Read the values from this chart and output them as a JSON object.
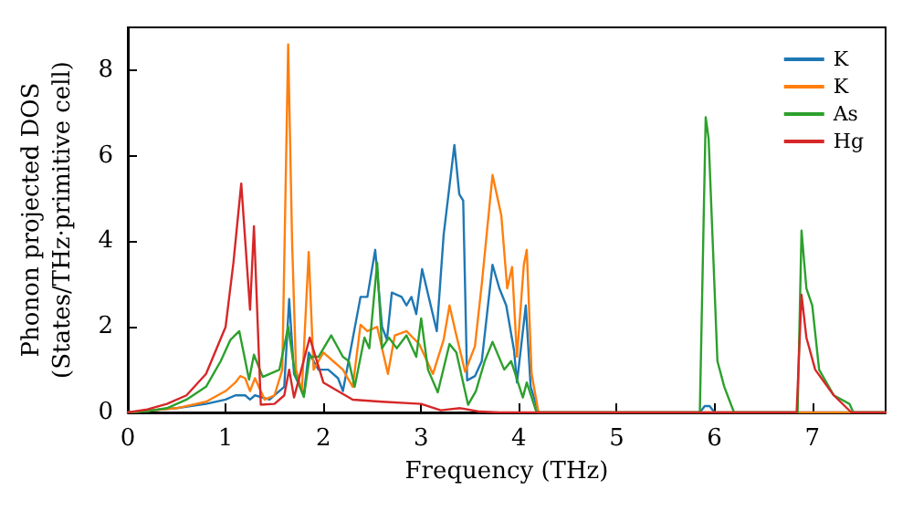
{
  "chart_data": {
    "type": "line",
    "xlabel": "Frequency (THz)",
    "ylabel": "Phonon projected DOS\n(States/THz·primitive cell)",
    "xlim": [
      0,
      7.75
    ],
    "ylim": [
      0,
      9
    ],
    "xticks": [
      0,
      1,
      2,
      3,
      4,
      5,
      6,
      7
    ],
    "yticks": [
      0,
      2,
      4,
      6,
      8
    ],
    "grid": false,
    "legend": "top right",
    "marker": "none",
    "line_style": "solid",
    "series": [
      {
        "name": "K",
        "color": "#1f77b4",
        "x": [
          0,
          0.5,
          0.8,
          1.0,
          1.1,
          1.2,
          1.25,
          1.3,
          1.45,
          1.6,
          1.65,
          1.7,
          1.8,
          1.85,
          1.95,
          2.05,
          2.15,
          2.2,
          2.38,
          2.45,
          2.53,
          2.6,
          2.65,
          2.7,
          2.8,
          2.85,
          2.9,
          2.95,
          3.01,
          3.16,
          3.23,
          3.34,
          3.39,
          3.43,
          3.47,
          3.55,
          3.62,
          3.73,
          3.8,
          3.87,
          3.95,
          3.98,
          4.07,
          4.12,
          4.2,
          5.85,
          5.9,
          5.95,
          6.0,
          7.75
        ],
        "values": [
          0,
          0.1,
          0.2,
          0.3,
          0.4,
          0.4,
          0.3,
          0.4,
          0.3,
          0.6,
          2.65,
          0.9,
          0.4,
          1.4,
          1.0,
          1.0,
          0.8,
          0.5,
          2.7,
          2.7,
          3.8,
          2.0,
          1.7,
          2.8,
          2.7,
          2.5,
          2.7,
          2.3,
          3.35,
          1.9,
          4.15,
          6.25,
          5.1,
          4.95,
          0.75,
          0.85,
          1.2,
          3.45,
          2.9,
          2.5,
          1.45,
          0.7,
          2.5,
          0.6,
          0,
          0,
          0.15,
          0.15,
          0,
          0
        ]
      },
      {
        "name": "K",
        "color": "#ff7f0e",
        "x": [
          0,
          0.5,
          0.8,
          1.0,
          1.1,
          1.15,
          1.2,
          1.25,
          1.3,
          1.4,
          1.5,
          1.58,
          1.64,
          1.68,
          1.72,
          1.78,
          1.85,
          1.9,
          1.95,
          2.0,
          2.1,
          2.2,
          2.3,
          2.38,
          2.45,
          2.55,
          2.66,
          2.73,
          2.85,
          2.98,
          3.12,
          3.23,
          3.29,
          3.35,
          3.45,
          3.55,
          3.62,
          3.73,
          3.82,
          3.88,
          3.93,
          3.98,
          4.05,
          4.08,
          4.13,
          4.2,
          7.75
        ],
        "values": [
          0,
          0.1,
          0.25,
          0.5,
          0.7,
          0.85,
          0.8,
          0.5,
          0.8,
          0.3,
          0.4,
          1.0,
          8.6,
          4.0,
          1.0,
          0.5,
          3.75,
          1.0,
          1.2,
          1.4,
          1.2,
          1.0,
          0.6,
          2.05,
          1.9,
          2.0,
          0.9,
          1.8,
          1.9,
          1.6,
          0.9,
          1.7,
          2.5,
          1.9,
          0.95,
          1.55,
          3.0,
          5.55,
          4.6,
          2.9,
          3.4,
          1.3,
          3.45,
          3.8,
          0.9,
          0,
          0
        ]
      },
      {
        "name": "As",
        "color": "#2ca02c",
        "x": [
          0,
          0.2,
          0.4,
          0.6,
          0.8,
          0.95,
          1.05,
          1.14,
          1.24,
          1.29,
          1.38,
          1.55,
          1.64,
          1.71,
          1.8,
          1.86,
          1.95,
          2.08,
          2.2,
          2.26,
          2.32,
          2.42,
          2.47,
          2.55,
          2.6,
          2.67,
          2.75,
          2.85,
          2.95,
          3.0,
          3.07,
          3.17,
          3.29,
          3.36,
          3.48,
          3.56,
          3.65,
          3.73,
          3.85,
          3.92,
          4.04,
          4.08,
          4.18,
          5.85,
          5.91,
          5.94,
          6.03,
          6.1,
          6.2,
          6.85,
          6.89,
          6.94,
          7.0,
          7.07,
          7.22,
          7.38,
          7.42,
          7.75
        ],
        "values": [
          0,
          0.03,
          0.1,
          0.3,
          0.6,
          1.2,
          1.7,
          1.9,
          0.77,
          1.35,
          0.83,
          1.0,
          2.0,
          0.9,
          0.36,
          1.3,
          1.3,
          1.8,
          1.3,
          1.2,
          0.6,
          1.75,
          1.5,
          3.5,
          1.5,
          1.75,
          1.5,
          1.8,
          1.3,
          2.2,
          1.0,
          0.47,
          1.6,
          1.4,
          0.18,
          0.5,
          1.2,
          1.65,
          1.0,
          1.2,
          0.35,
          0.7,
          0,
          0,
          6.9,
          6.4,
          1.2,
          0.6,
          0,
          0,
          4.25,
          2.9,
          2.5,
          1.0,
          0.4,
          0.2,
          0,
          0
        ]
      },
      {
        "name": "Hg",
        "color": "#d62728",
        "x": [
          0,
          0.2,
          0.4,
          0.6,
          0.8,
          1.0,
          1.08,
          1.16,
          1.25,
          1.29,
          1.36,
          1.5,
          1.6,
          1.65,
          1.7,
          1.86,
          2.0,
          2.3,
          2.6,
          3.0,
          3.2,
          3.4,
          3.6,
          3.8,
          6.84,
          6.89,
          6.94,
          7.03,
          7.22,
          7.4,
          7.75
        ],
        "values": [
          0,
          0.07,
          0.2,
          0.4,
          0.9,
          2.0,
          3.5,
          5.35,
          2.4,
          4.35,
          0.18,
          0.2,
          0.4,
          1.0,
          0.35,
          1.75,
          0.7,
          0.3,
          0.25,
          0.2,
          0.05,
          0.1,
          0.02,
          0,
          0,
          2.75,
          1.75,
          1.0,
          0.4,
          0,
          0
        ]
      }
    ]
  }
}
